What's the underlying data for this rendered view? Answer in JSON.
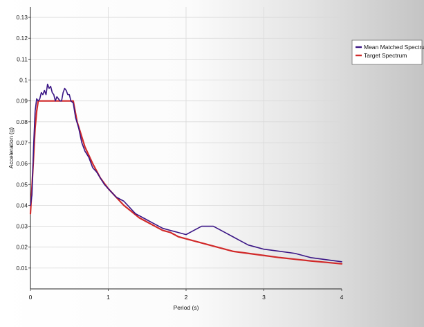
{
  "chart_data": {
    "type": "line",
    "title": "",
    "xlabel": "Period (s)",
    "ylabel": "Acceleration (g)",
    "xlim": [
      0,
      4
    ],
    "ylim": [
      0,
      0.135
    ],
    "x_ticks": [
      0,
      1,
      2,
      3,
      4
    ],
    "x_tick_labels": [
      "0",
      "1",
      "2",
      "3",
      "4"
    ],
    "y_ticks": [
      0.01,
      0.02,
      0.03,
      0.04,
      0.05,
      0.06,
      0.07,
      0.08,
      0.09,
      0.1,
      0.11,
      0.12,
      0.13
    ],
    "y_tick_labels": [
      "0.01",
      "0.02",
      "0.03",
      "0.04",
      "0.05",
      "0.06",
      "0.07",
      "0.08",
      "0.09",
      "0.1",
      "0.11",
      "0.12",
      "0.13"
    ],
    "grid": true,
    "legend_position": "top-right",
    "series": [
      {
        "name": "Mean Matched Spectrum",
        "color": "#3a1585",
        "x": [
          0,
          0.02,
          0.04,
          0.06,
          0.08,
          0.1,
          0.12,
          0.14,
          0.16,
          0.18,
          0.2,
          0.22,
          0.24,
          0.26,
          0.28,
          0.3,
          0.32,
          0.34,
          0.36,
          0.38,
          0.4,
          0.42,
          0.44,
          0.46,
          0.48,
          0.5,
          0.52,
          0.55,
          0.58,
          0.62,
          0.66,
          0.7,
          0.75,
          0.8,
          0.85,
          0.9,
          0.95,
          1.0,
          1.05,
          1.1,
          1.15,
          1.2,
          1.25,
          1.3,
          1.35,
          1.4,
          1.45,
          1.5,
          1.55,
          1.6,
          1.7,
          1.8,
          1.9,
          2.0,
          2.05,
          2.1,
          2.15,
          2.2,
          2.25,
          2.3,
          2.35,
          2.4,
          2.45,
          2.5,
          2.6,
          2.7,
          2.8,
          2.9,
          3.0,
          3.2,
          3.4,
          3.6,
          3.8,
          4.0
        ],
        "y": [
          0.04,
          0.045,
          0.068,
          0.085,
          0.091,
          0.09,
          0.091,
          0.094,
          0.093,
          0.095,
          0.093,
          0.098,
          0.096,
          0.097,
          0.094,
          0.093,
          0.09,
          0.092,
          0.091,
          0.09,
          0.09,
          0.094,
          0.096,
          0.095,
          0.093,
          0.093,
          0.09,
          0.089,
          0.082,
          0.077,
          0.07,
          0.066,
          0.063,
          0.058,
          0.056,
          0.053,
          0.05,
          0.048,
          0.046,
          0.044,
          0.043,
          0.042,
          0.04,
          0.038,
          0.036,
          0.035,
          0.034,
          0.033,
          0.032,
          0.031,
          0.029,
          0.028,
          0.027,
          0.026,
          0.027,
          0.028,
          0.029,
          0.03,
          0.03,
          0.03,
          0.03,
          0.029,
          0.028,
          0.027,
          0.025,
          0.023,
          0.021,
          0.02,
          0.019,
          0.018,
          0.017,
          0.015,
          0.014,
          0.013
        ]
      },
      {
        "name": "Target Spectrum",
        "color": "#d12a2a",
        "x": [
          0,
          0.02,
          0.04,
          0.06,
          0.08,
          0.1,
          0.13,
          0.2,
          0.3,
          0.4,
          0.5,
          0.55,
          0.6,
          0.7,
          0.8,
          0.9,
          1.0,
          1.1,
          1.2,
          1.3,
          1.4,
          1.5,
          1.6,
          1.7,
          1.8,
          1.9,
          2.0,
          2.2,
          2.4,
          2.6,
          2.8,
          3.0,
          3.2,
          3.4,
          3.6,
          3.8,
          4.0
        ],
        "y": [
          0.036,
          0.049,
          0.063,
          0.077,
          0.085,
          0.09,
          0.09,
          0.09,
          0.09,
          0.09,
          0.09,
          0.09,
          0.08,
          0.068,
          0.06,
          0.053,
          0.048,
          0.044,
          0.04,
          0.037,
          0.034,
          0.032,
          0.03,
          0.028,
          0.027,
          0.025,
          0.024,
          0.022,
          0.02,
          0.018,
          0.017,
          0.016,
          0.015,
          0.0142,
          0.0134,
          0.0127,
          0.012
        ]
      }
    ]
  }
}
